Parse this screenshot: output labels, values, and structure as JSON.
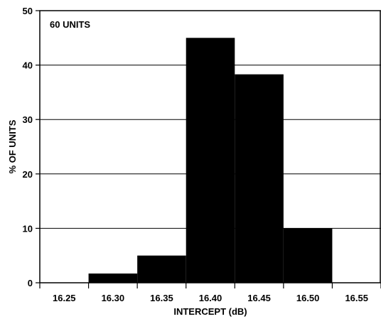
{
  "chart_data": {
    "type": "bar",
    "annotation": "60 UNITS",
    "xlabel": "INTERCEPT (dB)",
    "ylabel": "% OF UNITS",
    "categories": [
      "16.25",
      "16.30",
      "16.35",
      "16.40",
      "16.45",
      "16.50",
      "16.55"
    ],
    "values": [
      0,
      1.7,
      5,
      45,
      38.3,
      10,
      0
    ],
    "ylim": [
      0,
      50
    ],
    "yticks": [
      0,
      10,
      20,
      30,
      40,
      50
    ],
    "grid": true,
    "colors": {
      "bar": "#000000",
      "grid": "#000000",
      "background": "#ffffff"
    }
  }
}
